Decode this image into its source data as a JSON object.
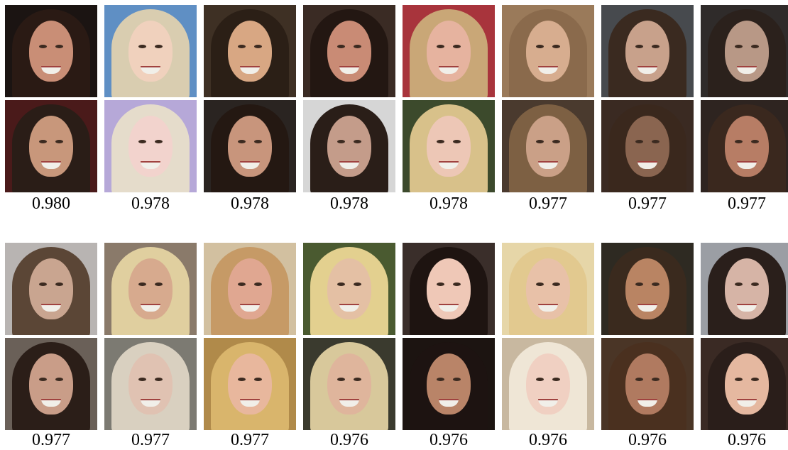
{
  "blocks": [
    {
      "scores": [
        "0.980",
        "0.978",
        "0.978",
        "0.978",
        "0.978",
        "0.977",
        "0.977",
        "0.977"
      ]
    },
    {
      "scores": [
        "0.977",
        "0.977",
        "0.977",
        "0.976",
        "0.976",
        "0.976",
        "0.976",
        "0.976"
      ]
    }
  ],
  "palette": {
    "hair": [
      "#2a1a14",
      "#d9cdb0",
      "#2b1f16",
      "#231712",
      "#c9a777",
      "#8a6a4c",
      "#3a2a20",
      "#2b211c",
      "#2a1d17",
      "#e5dccb",
      "#241812",
      "#2a1e18",
      "#d8c18a",
      "#7d6043",
      "#3a281d",
      "#3a281e",
      "#5b4636",
      "#e0cf9f",
      "#c69a66",
      "#e3d08f",
      "#1e1411",
      "#e2c98f",
      "#3a2a1e",
      "#2a1f1b",
      "#2b1e18",
      "#d9d0c0",
      "#d9b56c",
      "#d8c89b",
      "#1d1311",
      "#efe6d6",
      "#4a301f",
      "#2a1e1a"
    ],
    "skin": [
      "#c98e76",
      "#f0d1bd",
      "#d8a783",
      "#c98b75",
      "#e6b39f",
      "#d7ad8f",
      "#c8a18b",
      "#b89886",
      "#c8977b",
      "#f2d3cd",
      "#c8957c",
      "#c49c8a",
      "#edc7b6",
      "#caa087",
      "#8a6550",
      "#b77d65",
      "#c9a590",
      "#d7aa8e",
      "#e0a791",
      "#e4c0a4",
      "#efc8b7",
      "#e8c1a8",
      "#b98463",
      "#d6b4a6",
      "#c99d88",
      "#e0c2b2",
      "#e8b79d",
      "#dfb59c",
      "#b98468",
      "#f0d0c2",
      "#b07a60",
      "#e5b8a0"
    ],
    "bg": [
      "#1b1412",
      "#5f8fc4",
      "#3e3024",
      "#3a2b24",
      "#a8343c",
      "#9a7a5a",
      "#474a4e",
      "#2f2b2a",
      "#4a1a1a",
      "#b6a8d8",
      "#2a2421",
      "#d6d6d6",
      "#3c4a2c",
      "#4a3a2e",
      "#3a2a22",
      "#2e2420",
      "#b8b4b2",
      "#8a7a6a",
      "#d2c0a0",
      "#4a5a30",
      "#3a2e2a",
      "#e6d6a8",
      "#2e2a22",
      "#9b9ea4",
      "#6a6058",
      "#7c7a72",
      "#b08a4a",
      "#3a3a2e",
      "#1c1411",
      "#c8b8a0",
      "#4a3526",
      "#3a2a24"
    ]
  }
}
